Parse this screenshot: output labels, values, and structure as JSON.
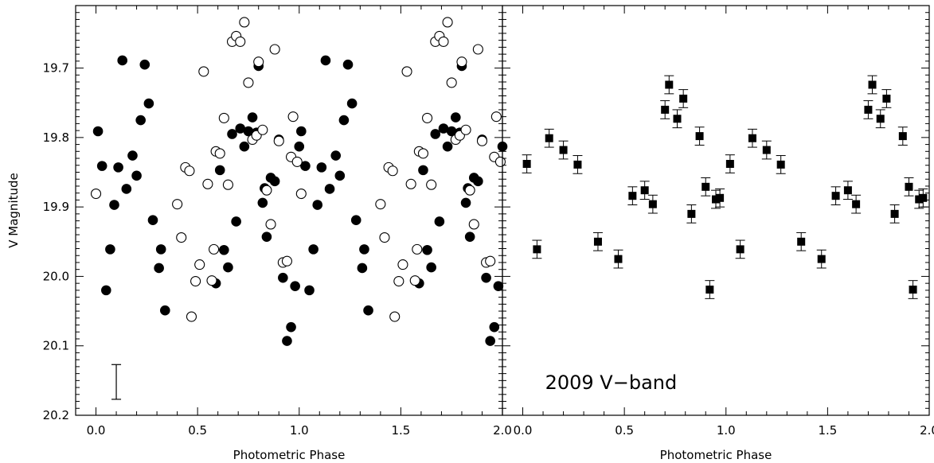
{
  "chart_data": [
    {
      "type": "scatter",
      "title": "",
      "xlabel": "Photometric Phase",
      "ylabel": "V Magnitude",
      "xlim": [
        -0.1,
        2.0
      ],
      "ylim": [
        20.2,
        19.61
      ],
      "y_inverted": true,
      "x_ticks": [
        "0.0",
        "0.5",
        "1.0",
        "1.5",
        "2.0"
      ],
      "y_ticks": [
        "19.7",
        "19.8",
        "19.9",
        "20.0",
        "20.1",
        "20.2"
      ],
      "typical_error_bar": {
        "x": 0.1,
        "y": 20.152,
        "err": 0.025
      },
      "series": [
        {
          "marker": "filled-circle",
          "points": [
            [
              0.01,
              19.791
            ],
            [
              0.03,
              19.841
            ],
            [
              0.05,
              20.02
            ],
            [
              0.07,
              19.961
            ],
            [
              0.09,
              19.897
            ],
            [
              0.11,
              19.843
            ],
            [
              0.13,
              19.689
            ],
            [
              0.15,
              19.874
            ],
            [
              0.18,
              19.826
            ],
            [
              0.2,
              19.855
            ],
            [
              0.22,
              19.775
            ],
            [
              0.24,
              19.695
            ],
            [
              0.26,
              19.751
            ],
            [
              0.28,
              19.919
            ],
            [
              0.31,
              19.988
            ],
            [
              0.32,
              19.961
            ],
            [
              0.34,
              20.049
            ],
            [
              0.59,
              20.01
            ],
            [
              0.61,
              19.847
            ],
            [
              0.63,
              19.962
            ],
            [
              0.65,
              19.987
            ],
            [
              0.67,
              19.795
            ],
            [
              0.69,
              19.921
            ],
            [
              0.71,
              19.787
            ],
            [
              0.73,
              19.813
            ],
            [
              0.75,
              19.791
            ],
            [
              0.77,
              19.771
            ],
            [
              0.79,
              19.793
            ],
            [
              0.8,
              19.697
            ],
            [
              0.82,
              19.894
            ],
            [
              0.83,
              19.873
            ],
            [
              0.84,
              19.943
            ],
            [
              0.86,
              19.858
            ],
            [
              0.88,
              19.863
            ],
            [
              0.9,
              19.803
            ],
            [
              0.92,
              20.002
            ],
            [
              0.94,
              20.093
            ],
            [
              0.96,
              20.073
            ],
            [
              0.98,
              20.014
            ],
            [
              1.0,
              19.813
            ],
            [
              1.01,
              19.791
            ],
            [
              1.03,
              19.841
            ],
            [
              1.05,
              20.02
            ],
            [
              1.07,
              19.961
            ],
            [
              1.09,
              19.897
            ],
            [
              1.11,
              19.843
            ],
            [
              1.13,
              19.689
            ],
            [
              1.15,
              19.874
            ],
            [
              1.18,
              19.826
            ],
            [
              1.2,
              19.855
            ],
            [
              1.22,
              19.775
            ],
            [
              1.24,
              19.695
            ],
            [
              1.26,
              19.751
            ],
            [
              1.28,
              19.919
            ],
            [
              1.31,
              19.988
            ],
            [
              1.32,
              19.961
            ],
            [
              1.34,
              20.049
            ],
            [
              1.59,
              20.01
            ],
            [
              1.61,
              19.847
            ],
            [
              1.63,
              19.962
            ],
            [
              1.65,
              19.987
            ],
            [
              1.67,
              19.795
            ],
            [
              1.69,
              19.921
            ],
            [
              1.71,
              19.787
            ],
            [
              1.73,
              19.813
            ],
            [
              1.75,
              19.791
            ],
            [
              1.77,
              19.771
            ],
            [
              1.79,
              19.793
            ],
            [
              1.8,
              19.697
            ],
            [
              1.82,
              19.894
            ],
            [
              1.83,
              19.873
            ],
            [
              1.84,
              19.943
            ],
            [
              1.86,
              19.858
            ],
            [
              1.88,
              19.863
            ],
            [
              1.9,
              19.803
            ],
            [
              1.92,
              20.002
            ],
            [
              1.94,
              20.093
            ],
            [
              1.96,
              20.073
            ],
            [
              1.98,
              20.014
            ],
            [
              2.0,
              19.813
            ]
          ]
        },
        {
          "marker": "open-circle",
          "points": [
            [
              0.0,
              19.881
            ],
            [
              0.4,
              19.896
            ],
            [
              0.42,
              19.944
            ],
            [
              0.44,
              19.843
            ],
            [
              0.46,
              19.848
            ],
            [
              0.47,
              20.058
            ],
            [
              0.49,
              20.007
            ],
            [
              0.51,
              19.983
            ],
            [
              0.53,
              19.705
            ],
            [
              0.55,
              19.867
            ],
            [
              0.57,
              20.006
            ],
            [
              0.58,
              19.961
            ],
            [
              0.59,
              19.82
            ],
            [
              0.61,
              19.823
            ],
            [
              0.63,
              19.772
            ],
            [
              0.65,
              19.868
            ],
            [
              0.67,
              19.662
            ],
            [
              0.69,
              19.654
            ],
            [
              0.71,
              19.662
            ],
            [
              0.73,
              19.634
            ],
            [
              0.75,
              19.721
            ],
            [
              0.77,
              19.803
            ],
            [
              0.79,
              19.797
            ],
            [
              0.8,
              19.691
            ],
            [
              0.82,
              19.789
            ],
            [
              0.84,
              19.876
            ],
            [
              0.86,
              19.925
            ],
            [
              0.88,
              19.673
            ],
            [
              0.9,
              19.805
            ],
            [
              0.92,
              19.98
            ],
            [
              0.94,
              19.978
            ],
            [
              0.96,
              19.828
            ],
            [
              0.97,
              19.77
            ],
            [
              0.99,
              19.835
            ],
            [
              1.01,
              19.881
            ],
            [
              1.4,
              19.896
            ],
            [
              1.42,
              19.944
            ],
            [
              1.44,
              19.843
            ],
            [
              1.46,
              19.848
            ],
            [
              1.47,
              20.058
            ],
            [
              1.49,
              20.007
            ],
            [
              1.51,
              19.983
            ],
            [
              1.53,
              19.705
            ],
            [
              1.55,
              19.867
            ],
            [
              1.57,
              20.006
            ],
            [
              1.58,
              19.961
            ],
            [
              1.59,
              19.82
            ],
            [
              1.61,
              19.823
            ],
            [
              1.63,
              19.772
            ],
            [
              1.65,
              19.868
            ],
            [
              1.67,
              19.662
            ],
            [
              1.69,
              19.654
            ],
            [
              1.71,
              19.662
            ],
            [
              1.73,
              19.634
            ],
            [
              1.75,
              19.721
            ],
            [
              1.77,
              19.803
            ],
            [
              1.79,
              19.797
            ],
            [
              1.8,
              19.691
            ],
            [
              1.82,
              19.789
            ],
            [
              1.84,
              19.876
            ],
            [
              1.86,
              19.925
            ],
            [
              1.88,
              19.673
            ],
            [
              1.9,
              19.805
            ],
            [
              1.92,
              19.98
            ],
            [
              1.94,
              19.978
            ],
            [
              1.96,
              19.828
            ],
            [
              1.97,
              19.77
            ],
            [
              1.99,
              19.835
            ]
          ]
        }
      ]
    },
    {
      "type": "scatter",
      "title": "",
      "xlabel": "Photometric Phase",
      "ylabel": "",
      "xlim": [
        -0.1,
        2.0
      ],
      "ylim": [
        20.2,
        19.61
      ],
      "y_inverted": true,
      "x_ticks": [
        "0.0",
        "0.5",
        "1.0",
        "1.5",
        "2.0"
      ],
      "annotation": "2009 V−band",
      "series": [
        {
          "marker": "filled-square",
          "error_bar": 0.013,
          "points": [
            [
              0.02,
              19.838
            ],
            [
              0.07,
              19.961
            ],
            [
              0.13,
              19.801
            ],
            [
              0.2,
              19.818
            ],
            [
              0.27,
              19.839
            ],
            [
              0.37,
              19.95
            ],
            [
              0.47,
              19.975
            ],
            [
              0.54,
              19.884
            ],
            [
              0.6,
              19.876
            ],
            [
              0.64,
              19.896
            ],
            [
              0.7,
              19.76
            ],
            [
              0.72,
              19.724
            ],
            [
              0.76,
              19.773
            ],
            [
              0.79,
              19.744
            ],
            [
              0.83,
              19.91
            ],
            [
              0.87,
              19.798
            ],
            [
              0.9,
              19.871
            ],
            [
              0.92,
              20.019
            ],
            [
              0.95,
              19.889
            ],
            [
              0.97,
              19.887
            ],
            [
              1.02,
              19.838
            ],
            [
              1.07,
              19.961
            ],
            [
              1.13,
              19.801
            ],
            [
              1.2,
              19.818
            ],
            [
              1.27,
              19.839
            ],
            [
              1.37,
              19.95
            ],
            [
              1.47,
              19.975
            ],
            [
              1.54,
              19.884
            ],
            [
              1.6,
              19.876
            ],
            [
              1.64,
              19.896
            ],
            [
              1.7,
              19.76
            ],
            [
              1.72,
              19.724
            ],
            [
              1.76,
              19.773
            ],
            [
              1.79,
              19.744
            ],
            [
              1.83,
              19.91
            ],
            [
              1.87,
              19.798
            ],
            [
              1.9,
              19.871
            ],
            [
              1.92,
              20.019
            ],
            [
              1.95,
              19.889
            ],
            [
              1.97,
              19.887
            ]
          ]
        }
      ]
    }
  ]
}
